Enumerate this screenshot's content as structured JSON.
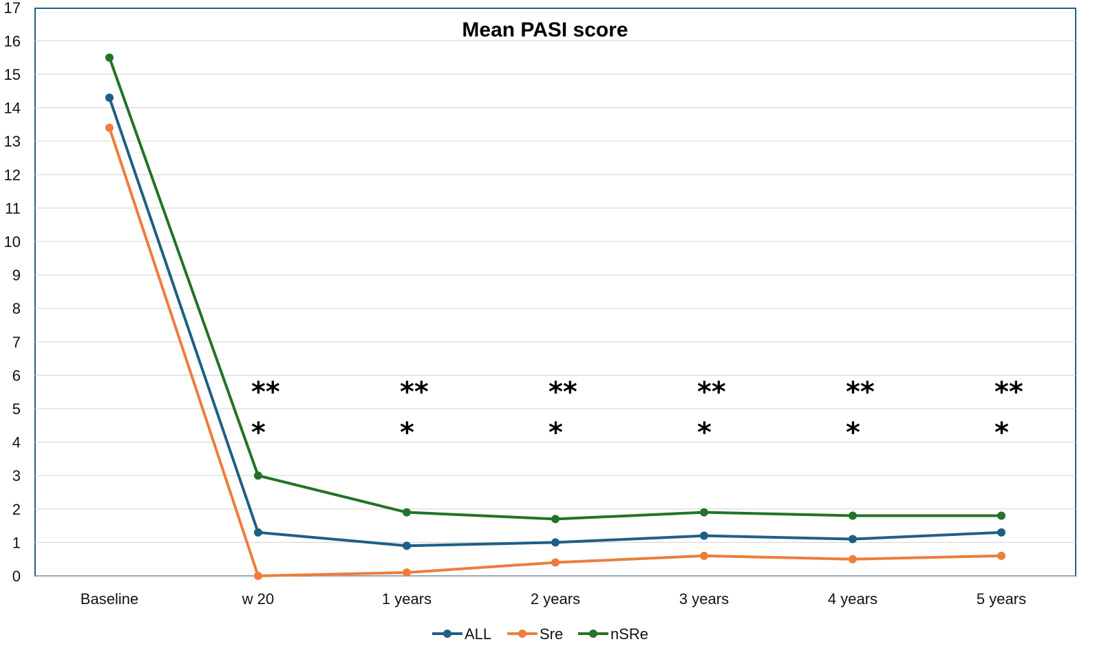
{
  "chart_data": {
    "type": "line",
    "title": "Mean PASI score",
    "xlabel": "",
    "ylabel": "",
    "categories": [
      "Baseline",
      "w 20",
      "1 years",
      "2 years",
      "3 years",
      "4 years",
      "5 years"
    ],
    "y_ticks": [
      "0",
      "1",
      "2",
      "3",
      "4",
      "5",
      "6",
      "7",
      "8",
      "9",
      "10",
      "11",
      "12",
      "13",
      "14",
      "15",
      "16",
      "17"
    ],
    "ylim": [
      0,
      17
    ],
    "grid": true,
    "legend_position": "bottom",
    "series": [
      {
        "name": "ALL",
        "color": "#1f5f86",
        "values": [
          14.3,
          1.3,
          0.9,
          1.0,
          1.2,
          1.1,
          1.3
        ]
      },
      {
        "name": "Sre",
        "color": "#ee7d3b",
        "values": [
          13.4,
          0.0,
          0.1,
          0.4,
          0.6,
          0.5,
          0.6
        ]
      },
      {
        "name": "nSRe",
        "color": "#237328",
        "values": [
          15.5,
          3.0,
          1.9,
          1.7,
          1.9,
          1.8,
          1.8
        ]
      }
    ],
    "annotations": {
      "double_star": "**",
      "single_star": "*",
      "categories": [
        "w 20",
        "1 years",
        "2 years",
        "3 years",
        "4 years",
        "5 years"
      ]
    }
  },
  "colors": {
    "frame": "#1f5f86",
    "grid": "#d9d9d9"
  }
}
